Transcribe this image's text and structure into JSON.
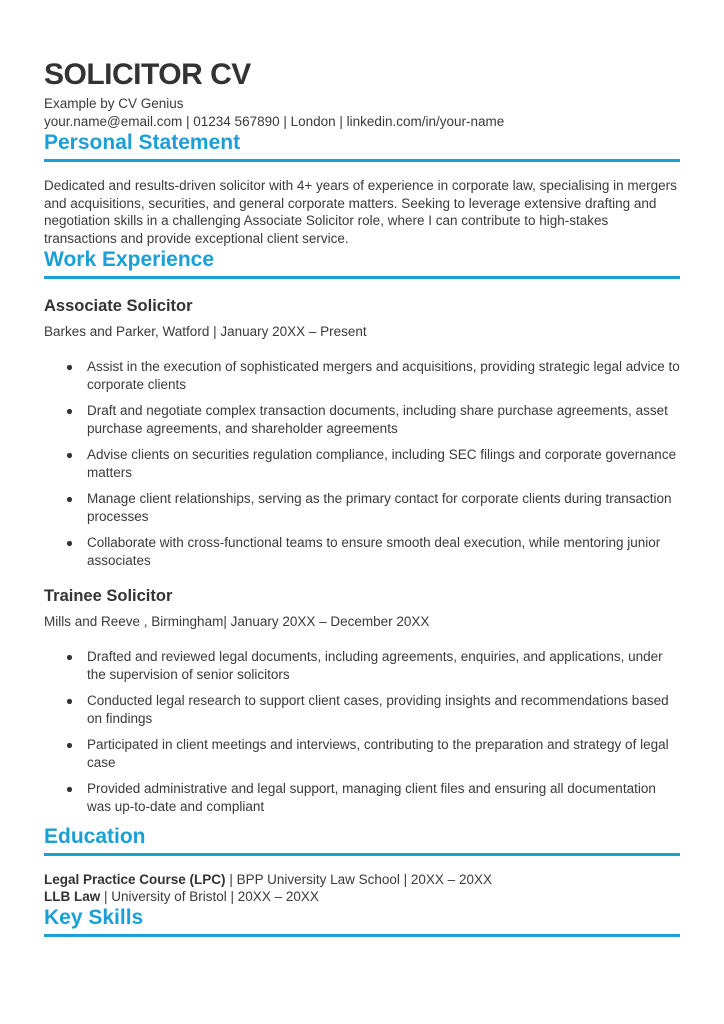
{
  "header": {
    "title": "SOLICITOR CV",
    "subtitle": "Example by CV Genius",
    "contact": "your.name@email.com | 01234 567890 | London | linkedin.com/in/your-name"
  },
  "personal_statement": {
    "heading": "Personal Statement",
    "text": "Dedicated and results-driven solicitor with 4+ years of experience in corporate law, specialising in mergers and acquisitions, securities, and general corporate matters. Seeking to leverage extensive drafting and negotiation skills in a challenging Associate Solicitor role, where I can contribute to high-stakes transactions and provide exceptional client service."
  },
  "work_experience": {
    "heading": "Work Experience",
    "jobs": [
      {
        "title": "Associate Solicitor",
        "company": "Barkes and Parker, Watford | January 20XX – Present",
        "bullets": [
          "Assist in the execution of sophisticated mergers and acquisitions, providing strategic legal advice to corporate clients",
          "Draft and negotiate complex transaction documents, including share purchase agreements, asset purchase agreements, and shareholder agreements",
          "Advise clients on securities regulation compliance, including SEC filings and corporate governance matters",
          "Manage client relationships, serving as the primary contact for corporate clients during transaction processes",
          "Collaborate with cross-functional teams to ensure smooth deal execution, while mentoring junior associates"
        ]
      },
      {
        "title": "Trainee Solicitor",
        "company": "Mills and Reeve , Birmingham| January 20XX – December 20XX",
        "bullets": [
          "Drafted and reviewed legal documents, including agreements, enquiries, and applications, under the supervision of senior solicitors",
          "Conducted legal research to support client cases, providing insights and recommendations based on findings",
          "Participated in client meetings and interviews, contributing to the preparation and strategy of legal case",
          "Provided administrative and legal support, managing client files and ensuring all documentation was up-to-date and compliant"
        ]
      }
    ]
  },
  "education": {
    "heading": "Education",
    "entries": [
      {
        "degree": "Legal Practice Course (LPC)",
        "details": " | BPP University Law School | 20XX – 20XX"
      },
      {
        "degree": "LLB Law",
        "details": " | University of Bristol | 20XX – 20XX"
      }
    ]
  },
  "key_skills": {
    "heading": "Key Skills"
  },
  "colors": {
    "accent": "#1a9fd6",
    "text": "#3a3a3a"
  }
}
